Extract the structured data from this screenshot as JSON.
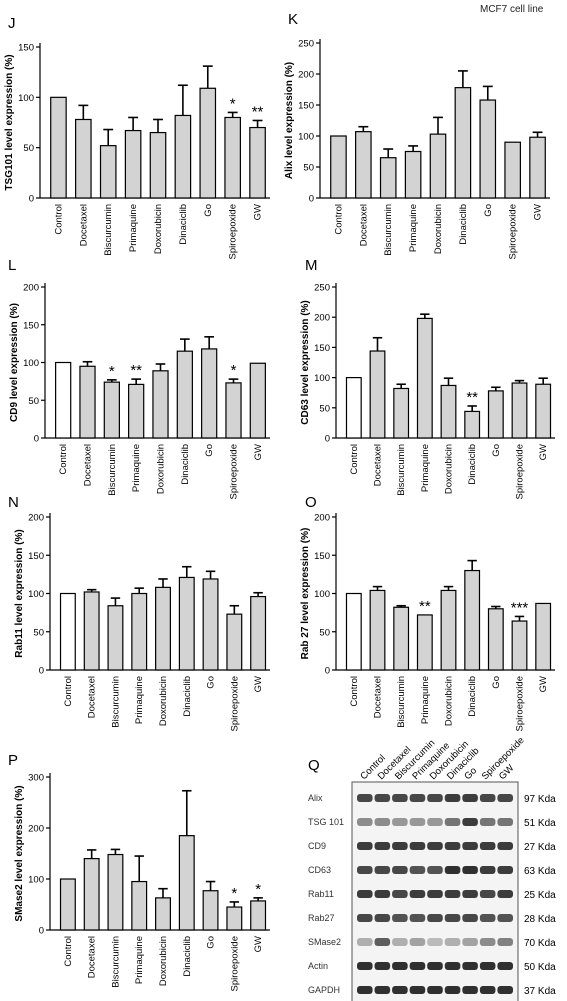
{
  "header_note": "MCF7 cell line",
  "colors": {
    "control_fill": "#ffffff",
    "treatment_fill": "#d3d3d3",
    "stroke": "#000000"
  },
  "categories": [
    "Control",
    "Docetaxel",
    "Biscurcumin",
    "Primaquine",
    "Doxorubicin",
    "Dinaciclib",
    "Go",
    "Spiroepoxide",
    "GW"
  ],
  "chart_data": [
    {
      "type": "bar",
      "panel": "J",
      "ylabel": "TSG101 level expression (%)",
      "categories": [
        "Control",
        "Docetaxel",
        "Biscurcumin",
        "Primaquine",
        "Doxorubicin",
        "Dinaciclib",
        "Go",
        "Spiroepoxide",
        "GW"
      ],
      "values": [
        100,
        78,
        52,
        67,
        65,
        82,
        109,
        80,
        70
      ],
      "errors": [
        0,
        14,
        16,
        13,
        13,
        30,
        22,
        5,
        7
      ],
      "significance": [
        "",
        "",
        "",
        "",
        "",
        "",
        "",
        "*",
        "**"
      ],
      "ylim": [
        0,
        150
      ],
      "yticks": [
        0,
        50,
        100,
        150
      ],
      "control_white": false
    },
    {
      "type": "bar",
      "panel": "K",
      "ylabel": "Alix level expression (%)",
      "categories": [
        "Control",
        "Docetaxel",
        "Biscurcumin",
        "Primaquine",
        "Doxorubicin",
        "Dinaciclib",
        "Go",
        "Spiroepoxide",
        "GW"
      ],
      "values": [
        100,
        107,
        65,
        75,
        103,
        178,
        158,
        90,
        98
      ],
      "errors": [
        0,
        8,
        14,
        9,
        27,
        27,
        22,
        0,
        8
      ],
      "significance": [
        "",
        "",
        "",
        "",
        "",
        "",
        "",
        "",
        ""
      ],
      "ylim": [
        0,
        250
      ],
      "yticks": [
        0,
        50,
        100,
        150,
        200,
        250
      ],
      "control_white": false
    },
    {
      "type": "bar",
      "panel": "L",
      "ylabel": "CD9 level expression (%)",
      "categories": [
        "Control",
        "Docetaxel",
        "Biscurcumin",
        "Primaquine",
        "Doxorubicin",
        "Dinaciclib",
        "Go",
        "Spiroepoxide",
        "GW"
      ],
      "values": [
        100,
        95,
        74,
        71,
        89,
        115,
        118,
        73,
        99
      ],
      "errors": [
        0,
        6,
        3,
        7,
        9,
        16,
        16,
        5,
        0
      ],
      "significance": [
        "",
        "",
        "*",
        "**",
        "",
        "",
        "",
        "*",
        ""
      ],
      "ylim": [
        0,
        200
      ],
      "yticks": [
        0,
        50,
        100,
        150,
        200
      ],
      "control_white": true
    },
    {
      "type": "bar",
      "panel": "M",
      "ylabel": "CD63 level expression (%)",
      "categories": [
        "Control",
        "Docetaxel",
        "Biscurcumin",
        "Primaquine",
        "Doxorubicin",
        "Dinaciclib",
        "Go",
        "Spiroepoxide",
        "GW"
      ],
      "values": [
        100,
        144,
        82,
        198,
        87,
        44,
        78,
        91,
        89
      ],
      "errors": [
        0,
        22,
        7,
        7,
        12,
        9,
        6,
        4,
        10
      ],
      "significance": [
        "",
        "",
        "",
        "",
        "",
        "**",
        "",
        "",
        ""
      ],
      "ylim": [
        0,
        250
      ],
      "yticks": [
        0,
        50,
        100,
        150,
        200,
        250
      ],
      "control_white": true
    },
    {
      "type": "bar",
      "panel": "N",
      "ylabel": "Rab11 level expression (%)",
      "categories": [
        "Control",
        "Docetaxel",
        "Biscurcumin",
        "Primaquine",
        "Doxorubicin",
        "Dinaciclib",
        "Go",
        "Spiroepoxide",
        "GW"
      ],
      "values": [
        100,
        102,
        84,
        100,
        108,
        121,
        119,
        73,
        96
      ],
      "errors": [
        0,
        3,
        10,
        7,
        11,
        14,
        10,
        11,
        5
      ],
      "significance": [
        "",
        "",
        "",
        "",
        "",
        "",
        "",
        "",
        ""
      ],
      "ylim": [
        0,
        200
      ],
      "yticks": [
        0,
        50,
        100,
        150,
        200
      ],
      "control_white": true
    },
    {
      "type": "bar",
      "panel": "O",
      "ylabel": "Rab 27 level expression (%)",
      "categories": [
        "Control",
        "Docetaxel",
        "Biscurcumin",
        "Primaquine",
        "Doxorubicin",
        "Dinaciclib",
        "Go",
        "Spiroepoxide",
        "GW"
      ],
      "values": [
        100,
        104,
        82,
        72,
        104,
        130,
        80,
        64,
        87
      ],
      "errors": [
        0,
        5,
        2,
        0,
        5,
        13,
        3,
        6,
        0
      ],
      "significance": [
        "",
        "",
        "",
        "**",
        "",
        "",
        "",
        "***",
        ""
      ],
      "ylim": [
        0,
        200
      ],
      "yticks": [
        0,
        50,
        100,
        150,
        200
      ],
      "control_white": true
    },
    {
      "type": "bar",
      "panel": "P",
      "ylabel": "SMase2 level expression (%)",
      "categories": [
        "Control",
        "Docetaxel",
        "Biscurcumin",
        "Primaquine",
        "Doxorubicin",
        "Dinaciclib",
        "Go",
        "Spiroepoxide",
        "GW"
      ],
      "values": [
        100,
        140,
        148,
        95,
        63,
        185,
        77,
        45,
        57
      ],
      "errors": [
        0,
        17,
        10,
        50,
        18,
        88,
        18,
        10,
        6
      ],
      "significance": [
        "",
        "",
        "",
        "",
        "",
        "",
        "",
        "*",
        "*"
      ],
      "ylim": [
        0,
        300
      ],
      "yticks": [
        0,
        100,
        200,
        300
      ],
      "control_white": false
    }
  ],
  "blot": {
    "panel": "Q",
    "lanes": [
      "Control",
      "Docetaxel",
      "Biscurcumin",
      "Primaquine",
      "Doxorubicin",
      "Dinaciclib",
      "Go",
      "Spiroepoxide",
      "GW"
    ],
    "rows": [
      {
        "label": "Alix",
        "kda": "97 Kda"
      },
      {
        "label": "TSG 101",
        "kda": "51 Kda"
      },
      {
        "label": "CD9",
        "kda": "27 Kda"
      },
      {
        "label": "CD63",
        "kda": "63 Kda"
      },
      {
        "label": "Rab11",
        "kda": "25 Kda"
      },
      {
        "label": "Rab27",
        "kda": "28 Kda"
      },
      {
        "label": "SMase2",
        "kda": "70 Kda"
      },
      {
        "label": "Actin",
        "kda": "50 Kda"
      },
      {
        "label": "GAPDH",
        "kda": "37 Kda"
      }
    ]
  }
}
